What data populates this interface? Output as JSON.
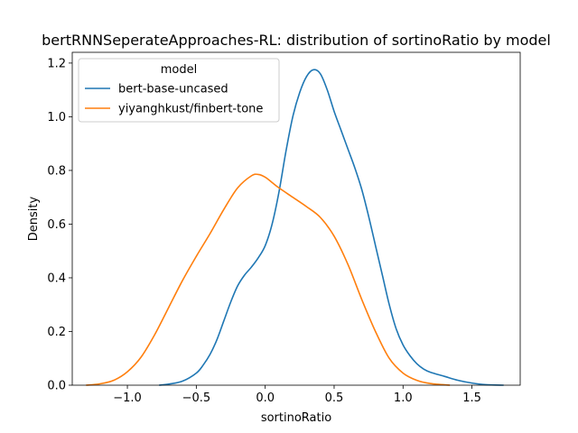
{
  "chart_data": {
    "type": "line",
    "title": "bertRNNSeperateApproaches-RL: distribution of sortinoRatio by model",
    "xlabel": "sortinoRatio",
    "ylabel": "Density",
    "xlim": [
      -1.4,
      1.85
    ],
    "ylim": [
      0,
      1.24
    ],
    "x_ticks": [
      -1.0,
      -0.5,
      0.0,
      0.5,
      1.0,
      1.5
    ],
    "x_tick_labels": [
      "−1.0",
      "−0.5",
      "0.0",
      "0.5",
      "1.0",
      "1.5"
    ],
    "y_ticks": [
      0.0,
      0.2,
      0.4,
      0.6,
      0.8,
      1.0,
      1.2
    ],
    "y_tick_labels": [
      "0.0",
      "0.2",
      "0.4",
      "0.6",
      "0.8",
      "1.0",
      "1.2"
    ],
    "grid": false,
    "legend": {
      "title": "model",
      "placement": "top-left"
    },
    "series": [
      {
        "name": "bert-base-uncased",
        "color": "#1f77b4",
        "points": [
          [
            -0.77,
            0.0
          ],
          [
            -0.7,
            0.004
          ],
          [
            -0.6,
            0.015
          ],
          [
            -0.5,
            0.045
          ],
          [
            -0.45,
            0.075
          ],
          [
            -0.4,
            0.115
          ],
          [
            -0.35,
            0.17
          ],
          [
            -0.3,
            0.24
          ],
          [
            -0.25,
            0.31
          ],
          [
            -0.2,
            0.37
          ],
          [
            -0.15,
            0.41
          ],
          [
            -0.1,
            0.44
          ],
          [
            -0.05,
            0.475
          ],
          [
            0.0,
            0.52
          ],
          [
            0.05,
            0.6
          ],
          [
            0.1,
            0.72
          ],
          [
            0.15,
            0.87
          ],
          [
            0.2,
            1.0
          ],
          [
            0.25,
            1.09
          ],
          [
            0.3,
            1.15
          ],
          [
            0.35,
            1.175
          ],
          [
            0.4,
            1.16
          ],
          [
            0.45,
            1.1
          ],
          [
            0.5,
            1.02
          ],
          [
            0.55,
            0.95
          ],
          [
            0.6,
            0.88
          ],
          [
            0.65,
            0.81
          ],
          [
            0.7,
            0.73
          ],
          [
            0.75,
            0.63
          ],
          [
            0.8,
            0.52
          ],
          [
            0.85,
            0.41
          ],
          [
            0.9,
            0.3
          ],
          [
            0.95,
            0.21
          ],
          [
            1.0,
            0.15
          ],
          [
            1.05,
            0.11
          ],
          [
            1.1,
            0.08
          ],
          [
            1.15,
            0.06
          ],
          [
            1.2,
            0.048
          ],
          [
            1.3,
            0.033
          ],
          [
            1.4,
            0.018
          ],
          [
            1.5,
            0.008
          ],
          [
            1.6,
            0.002
          ],
          [
            1.73,
            0.0
          ]
        ]
      },
      {
        "name": "yiyanghkust/finbert-tone",
        "color": "#ff7f0e",
        "points": [
          [
            -1.3,
            0.0
          ],
          [
            -1.2,
            0.005
          ],
          [
            -1.1,
            0.018
          ],
          [
            -1.0,
            0.05
          ],
          [
            -0.9,
            0.105
          ],
          [
            -0.8,
            0.19
          ],
          [
            -0.7,
            0.29
          ],
          [
            -0.6,
            0.39
          ],
          [
            -0.5,
            0.48
          ],
          [
            -0.4,
            0.565
          ],
          [
            -0.3,
            0.655
          ],
          [
            -0.2,
            0.735
          ],
          [
            -0.1,
            0.78
          ],
          [
            -0.05,
            0.785
          ],
          [
            0.0,
            0.775
          ],
          [
            0.05,
            0.755
          ],
          [
            0.1,
            0.735
          ],
          [
            0.2,
            0.7
          ],
          [
            0.3,
            0.665
          ],
          [
            0.4,
            0.625
          ],
          [
            0.5,
            0.555
          ],
          [
            0.6,
            0.45
          ],
          [
            0.7,
            0.32
          ],
          [
            0.8,
            0.2
          ],
          [
            0.9,
            0.1
          ],
          [
            1.0,
            0.045
          ],
          [
            1.1,
            0.018
          ],
          [
            1.2,
            0.006
          ],
          [
            1.34,
            0.0
          ]
        ]
      }
    ]
  }
}
